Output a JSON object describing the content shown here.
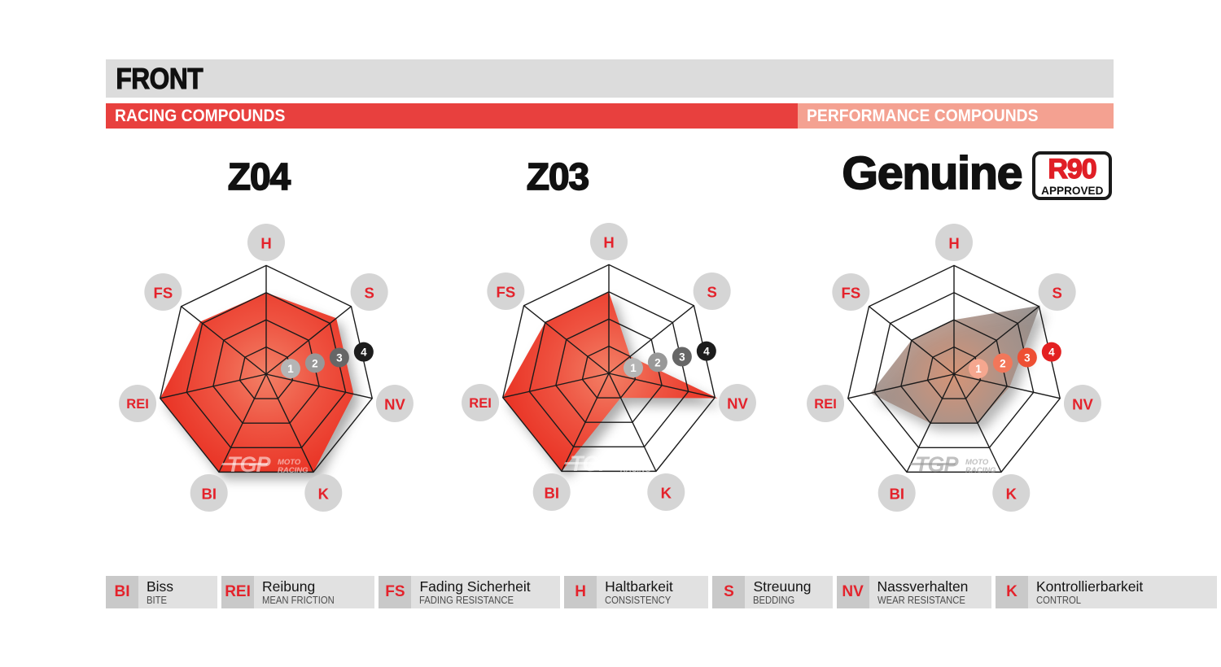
{
  "header": {
    "front_label": "FRONT",
    "racing_label": "RACING COMPOUNDS",
    "performance_label": "PERFORMANCE COMPOUNDS",
    "front_bg": "#dcdcdc",
    "racing_bg": "#e8403e",
    "performance_bg": "#f4a191"
  },
  "axes": [
    {
      "key": "H",
      "angle": 90
    },
    {
      "key": "S",
      "angle": 38.571
    },
    {
      "key": "NV",
      "angle": -12.857
    },
    {
      "key": "K",
      "angle": -64.286
    },
    {
      "key": "BI",
      "angle": -115.714
    },
    {
      "key": "REI",
      "angle": -167.143
    },
    {
      "key": "FS",
      "angle": 141.429
    }
  ],
  "scale": {
    "min": 0,
    "max": 4,
    "markers": [
      1,
      2,
      3,
      4
    ]
  },
  "colors": {
    "web_line": "#1b1b1b",
    "axis_badge_bg": "#d5d5d5",
    "axis_badge_text": "#e4222b",
    "marker_text": "#ffffff"
  },
  "charts": [
    {
      "title": "Z04",
      "group": "racing",
      "fill": {
        "center": "#f28066",
        "mid": "#ee5240",
        "edge": "#e93123"
      },
      "fill_opacity": 1,
      "marker_colors": [
        "#b5b5b5",
        "#989898",
        "#666666",
        "#1c1c1c"
      ],
      "watermark_color": "rgba(255,255,255,0.55)",
      "values": {
        "H": 3.0,
        "S": 3.3,
        "NV": 3.3,
        "K": 4.0,
        "BI": 4.0,
        "REI": 4.0,
        "FS": 3.1
      }
    },
    {
      "title": "Z03",
      "group": "racing",
      "fill": {
        "center": "#f28066",
        "mid": "#ee5240",
        "edge": "#e93123"
      },
      "fill_opacity": 1,
      "marker_colors": [
        "#b5b5b5",
        "#989898",
        "#666666",
        "#1c1c1c"
      ],
      "watermark_color": "rgba(255,255,255,0.55)",
      "values": {
        "H": 3.0,
        "S": 1.0,
        "NV": 4.1,
        "K": 1.0,
        "BI": 4.0,
        "REI": 4.0,
        "FS": 3.0
      }
    },
    {
      "title": "Genuine",
      "group": "performance",
      "badge": {
        "line1": "R90",
        "line2": "APPROVED"
      },
      "fill": {
        "center": "#d98f6e",
        "mid": "#a98e83",
        "edge": "#8a8786"
      },
      "fill_opacity": 0.88,
      "marker_colors": [
        "#f5a78f",
        "#f2775a",
        "#ee4f33",
        "#e32021"
      ],
      "watermark_color": "rgba(150,150,150,0.6)",
      "values": {
        "H": 2.0,
        "S": 4.05,
        "NV": 2.1,
        "K": 2.0,
        "BI": 2.0,
        "REI": 3.15,
        "FS": 2.0
      }
    }
  ],
  "watermark": {
    "logo": "TGP",
    "line1": "MOTO",
    "line2": "RACING"
  },
  "legend": [
    {
      "abbr": "BI",
      "de": "Biss",
      "en": "BITE"
    },
    {
      "abbr": "REI",
      "de": "Reibung",
      "en": "MEAN FRICTION"
    },
    {
      "abbr": "FS",
      "de": "Fading Sicherheit",
      "en": "FADING RESISTANCE"
    },
    {
      "abbr": "H",
      "de": "Haltbarkeit",
      "en": "CONSISTENCY"
    },
    {
      "abbr": "S",
      "de": "Streuung",
      "en": "BEDDING"
    },
    {
      "abbr": "NV",
      "de": "Nassverhalten",
      "en": "WEAR RESISTANCE"
    },
    {
      "abbr": "K",
      "de": "Kontrollierbarkeit",
      "en": "CONTROL"
    }
  ],
  "chart_data": {
    "type": "radar",
    "categories": [
      "H",
      "S",
      "NV",
      "K",
      "BI",
      "REI",
      "FS"
    ],
    "scale_range": [
      0,
      4
    ],
    "rings": 4,
    "legend_position": "bottom",
    "series": [
      {
        "name": "Z04",
        "values": [
          3.0,
          3.3,
          3.3,
          4.0,
          4.0,
          4.0,
          3.1
        ]
      },
      {
        "name": "Z03",
        "values": [
          3.0,
          1.0,
          4.1,
          1.0,
          4.0,
          4.0,
          3.0
        ]
      },
      {
        "name": "Genuine",
        "values": [
          2.0,
          4.05,
          2.1,
          2.0,
          2.0,
          3.15,
          2.0
        ]
      }
    ]
  }
}
